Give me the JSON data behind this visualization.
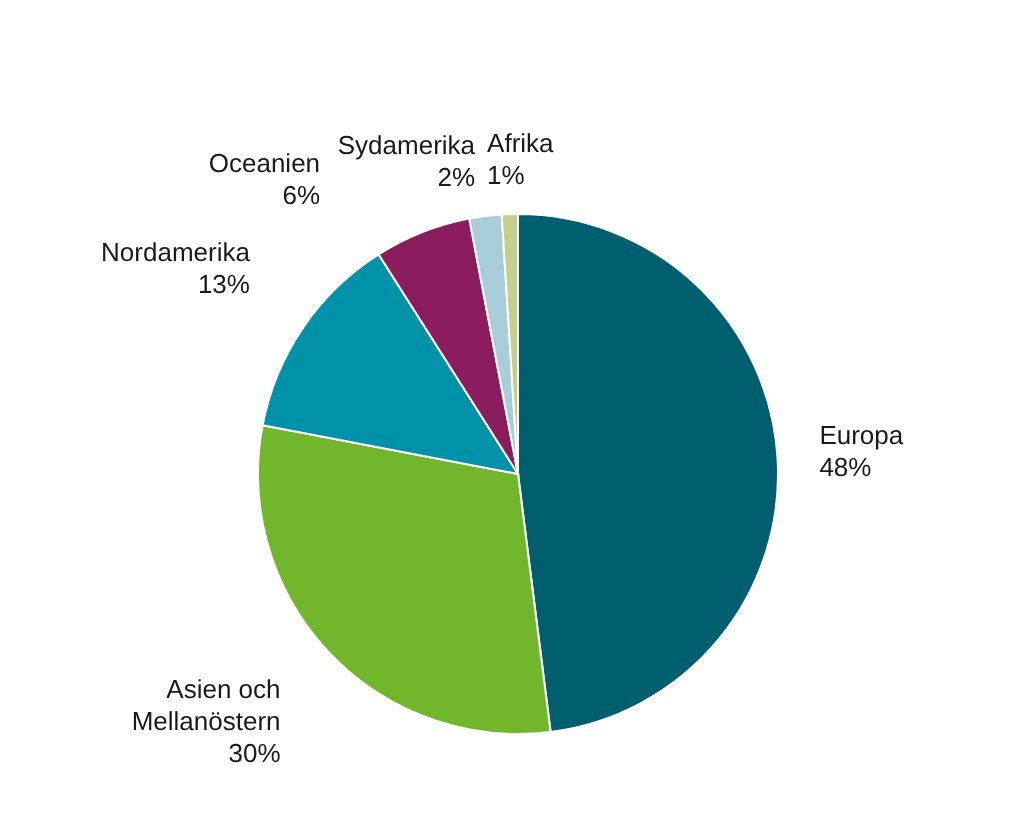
{
  "chart_data": {
    "type": "pie",
    "categories": [
      "Europa",
      "Asien och Mellanöstern",
      "Nordamerika",
      "Oceanien",
      "Sydamerika",
      "Afrika"
    ],
    "values": [
      48,
      30,
      13,
      6,
      2,
      1
    ],
    "value_labels": [
      "48%",
      "30%",
      "13%",
      "6%",
      "2%",
      "1%"
    ],
    "colors": [
      "#005f6e",
      "#72b62c",
      "#0092a8",
      "#8b1c5d",
      "#a9cdd8",
      "#c3cf8a"
    ]
  }
}
